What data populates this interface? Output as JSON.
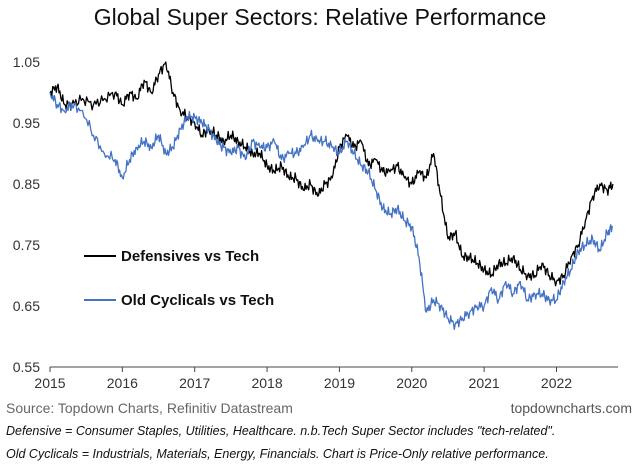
{
  "chart_data": {
    "type": "line",
    "title": "Global Super Sectors: Relative Performance",
    "xlabel": "",
    "ylabel": "",
    "xlim": [
      2015,
      2022.85
    ],
    "ylim": [
      0.55,
      1.05
    ],
    "x_ticks": [
      "2015",
      "2016",
      "2017",
      "2018",
      "2019",
      "2020",
      "2021",
      "2022"
    ],
    "x_tick_values": [
      2015,
      2016,
      2017,
      2018,
      2019,
      2020,
      2021,
      2022
    ],
    "y_ticks": [
      "1.05",
      "0.95",
      "0.85",
      "0.75",
      "0.65",
      "0.55"
    ],
    "y_tick_values": [
      1.05,
      0.95,
      0.85,
      0.75,
      0.65,
      0.55
    ],
    "grid": false,
    "legend_position": "center-left",
    "series": [
      {
        "name": "Defensives vs Tech",
        "color": "#000000",
        "x": [
          2015.0,
          2015.1,
          2015.2,
          2015.3,
          2015.45,
          2015.6,
          2015.75,
          2015.9,
          2016.0,
          2016.1,
          2016.2,
          2016.3,
          2016.4,
          2016.5,
          2016.6,
          2016.7,
          2016.8,
          2016.9,
          2017.0,
          2017.1,
          2017.2,
          2017.3,
          2017.4,
          2017.5,
          2017.6,
          2017.7,
          2017.8,
          2017.9,
          2018.0,
          2018.1,
          2018.2,
          2018.3,
          2018.4,
          2018.5,
          2018.6,
          2018.7,
          2018.8,
          2018.9,
          2019.0,
          2019.1,
          2019.2,
          2019.3,
          2019.4,
          2019.5,
          2019.6,
          2019.7,
          2019.8,
          2019.9,
          2020.0,
          2020.1,
          2020.2,
          2020.3,
          2020.4,
          2020.5,
          2020.6,
          2020.7,
          2020.8,
          2020.9,
          2021.0,
          2021.1,
          2021.2,
          2021.3,
          2021.4,
          2021.5,
          2021.6,
          2021.7,
          2021.8,
          2021.9,
          2022.0,
          2022.1,
          2022.2,
          2022.3,
          2022.4,
          2022.5,
          2022.6,
          2022.7,
          2022.78
        ],
        "values": [
          1.0,
          1.01,
          0.98,
          0.98,
          0.99,
          0.98,
          0.99,
          1.0,
          0.98,
          1.0,
          0.99,
          1.02,
          1.0,
          1.03,
          1.05,
          1.0,
          0.97,
          0.96,
          0.95,
          0.93,
          0.94,
          0.93,
          0.92,
          0.93,
          0.92,
          0.91,
          0.9,
          0.9,
          0.88,
          0.87,
          0.88,
          0.86,
          0.86,
          0.84,
          0.85,
          0.83,
          0.85,
          0.86,
          0.91,
          0.93,
          0.91,
          0.92,
          0.88,
          0.89,
          0.87,
          0.87,
          0.88,
          0.86,
          0.85,
          0.87,
          0.86,
          0.9,
          0.83,
          0.76,
          0.77,
          0.73,
          0.73,
          0.72,
          0.71,
          0.7,
          0.72,
          0.72,
          0.73,
          0.71,
          0.7,
          0.7,
          0.72,
          0.7,
          0.69,
          0.7,
          0.73,
          0.75,
          0.79,
          0.83,
          0.85,
          0.84,
          0.85
        ]
      },
      {
        "name": "Old Cyclicals vs Tech",
        "color": "#4472c4",
        "x": [
          2015.0,
          2015.1,
          2015.2,
          2015.3,
          2015.45,
          2015.6,
          2015.75,
          2015.9,
          2016.0,
          2016.1,
          2016.2,
          2016.3,
          2016.4,
          2016.5,
          2016.6,
          2016.7,
          2016.8,
          2016.9,
          2017.0,
          2017.1,
          2017.2,
          2017.3,
          2017.4,
          2017.5,
          2017.6,
          2017.7,
          2017.8,
          2017.9,
          2018.0,
          2018.1,
          2018.2,
          2018.3,
          2018.4,
          2018.5,
          2018.6,
          2018.7,
          2018.8,
          2018.9,
          2019.0,
          2019.1,
          2019.2,
          2019.3,
          2019.4,
          2019.5,
          2019.6,
          2019.7,
          2019.8,
          2019.9,
          2020.0,
          2020.1,
          2020.2,
          2020.3,
          2020.4,
          2020.5,
          2020.6,
          2020.7,
          2020.8,
          2020.9,
          2021.0,
          2021.1,
          2021.2,
          2021.3,
          2021.4,
          2021.5,
          2021.6,
          2021.7,
          2021.8,
          2021.9,
          2022.0,
          2022.1,
          2022.2,
          2022.3,
          2022.4,
          2022.5,
          2022.6,
          2022.7,
          2022.78
        ],
        "values": [
          1.0,
          0.98,
          0.97,
          0.98,
          0.97,
          0.93,
          0.9,
          0.89,
          0.86,
          0.89,
          0.91,
          0.92,
          0.91,
          0.93,
          0.9,
          0.91,
          0.94,
          0.96,
          0.96,
          0.95,
          0.94,
          0.92,
          0.91,
          0.9,
          0.91,
          0.89,
          0.92,
          0.91,
          0.91,
          0.92,
          0.89,
          0.9,
          0.9,
          0.91,
          0.93,
          0.92,
          0.92,
          0.91,
          0.9,
          0.92,
          0.9,
          0.88,
          0.87,
          0.84,
          0.81,
          0.8,
          0.81,
          0.79,
          0.78,
          0.73,
          0.64,
          0.66,
          0.65,
          0.63,
          0.62,
          0.63,
          0.64,
          0.65,
          0.65,
          0.68,
          0.66,
          0.69,
          0.67,
          0.69,
          0.66,
          0.67,
          0.67,
          0.66,
          0.66,
          0.69,
          0.71,
          0.74,
          0.75,
          0.76,
          0.74,
          0.77,
          0.78
        ]
      }
    ],
    "source": "Source: Topdown Charts, Refinitiv Datastream",
    "website": "topdowncharts.com",
    "notes": [
      "Defensive = Consumer Staples, Utilities, Healthcare.  n.b.Tech Super Sector includes \"tech-related\".",
      "Old Cyclicals = Industrials, Materials, Energy, Financials.  Chart is Price-Only relative performance."
    ]
  }
}
